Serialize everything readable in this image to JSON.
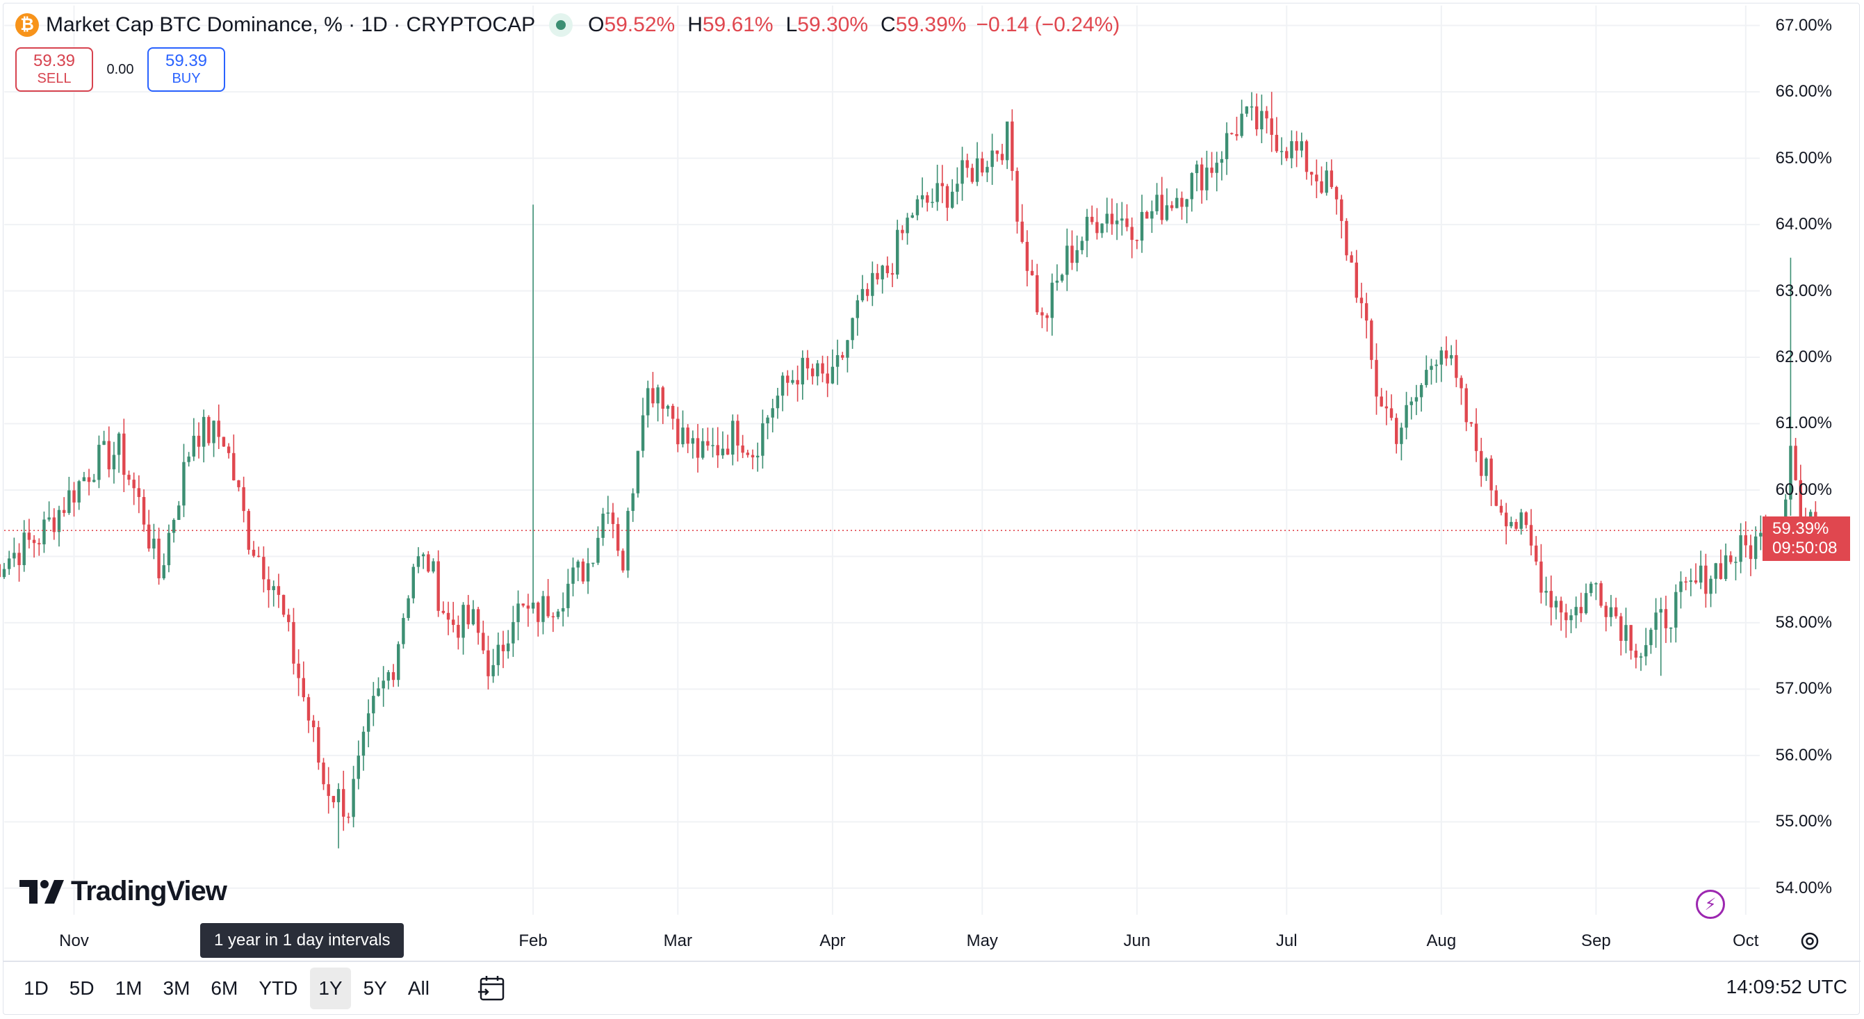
{
  "header": {
    "coin_symbol": "₿",
    "title": "Market Cap BTC Dominance, % · 1D · CRYPTOCAP",
    "ohlc": [
      {
        "k": "O",
        "v": "59.52%"
      },
      {
        "k": "H",
        "v": "59.61%"
      },
      {
        "k": "L",
        "v": "59.30%"
      },
      {
        "k": "C",
        "v": "59.39%"
      }
    ],
    "change": "−0.14 (−0.24%)"
  },
  "trade": {
    "sell_price": "59.39",
    "sell_label": "SELL",
    "spread": "0.00",
    "buy_price": "59.39",
    "buy_label": "BUY"
  },
  "price_tag": {
    "price": "59.39%",
    "countdown": "09:50:08"
  },
  "brand": "TradingView",
  "tooltip": "1 year in 1 day intervals",
  "periods": [
    "1D",
    "5D",
    "1M",
    "3M",
    "6M",
    "YTD",
    "1Y",
    "5Y",
    "All"
  ],
  "active_period": "1Y",
  "clock": "14:09:52 UTC",
  "colors": {
    "up": "#3c8f73",
    "down": "#e0474f",
    "grid": "#f0f2f5",
    "price_line": "#e0474f"
  },
  "chart_data": {
    "type": "candlestick",
    "title": "Market Cap BTC Dominance, % · 1D · CRYPTOCAP",
    "xlabel": "",
    "ylabel": "",
    "ylim": [
      53.6,
      67.3
    ],
    "y_ticks": [
      "54.00%",
      "55.00%",
      "56.00%",
      "57.00%",
      "58.00%",
      "59.00%",
      "60.00%",
      "61.00%",
      "62.00%",
      "63.00%",
      "64.00%",
      "65.00%",
      "66.00%",
      "67.00%"
    ],
    "x_ticks": [
      "Nov",
      "Feb",
      "Mar",
      "Apr",
      "May",
      "Jun",
      "Jul",
      "Aug",
      "Sep",
      "Oct"
    ],
    "x_tick_dates": [
      "2023-11-01",
      "2024-02-01",
      "2024-03-01",
      "2024-04-01",
      "2024-05-01",
      "2024-06-01",
      "2024-07-01",
      "2024-08-01",
      "2024-09-01",
      "2024-10-01"
    ],
    "grid": true,
    "last_price": 59.39,
    "close_series": {
      "start_date": "2023-10-15",
      "end_date": "2024-10-15",
      "interval": "1D",
      "anchors": [
        {
          "date": "2023-10-15",
          "close": 58.8
        },
        {
          "date": "2023-10-25",
          "close": 59.3
        },
        {
          "date": "2023-11-05",
          "close": 60.4
        },
        {
          "date": "2023-11-10",
          "close": 60.6
        },
        {
          "date": "2023-11-15",
          "close": 59.6
        },
        {
          "date": "2023-11-18",
          "close": 58.7
        },
        {
          "date": "2023-11-25",
          "close": 60.9
        },
        {
          "date": "2023-12-01",
          "close": 60.8
        },
        {
          "date": "2023-12-06",
          "close": 59.3
        },
        {
          "date": "2023-12-11",
          "close": 58.6
        },
        {
          "date": "2023-12-16",
          "close": 57.2
        },
        {
          "date": "2023-12-21",
          "close": 55.6
        },
        {
          "date": "2023-12-26",
          "close": 55.2
        },
        {
          "date": "2023-12-31",
          "close": 56.7
        },
        {
          "date": "2024-01-04",
          "close": 57.4
        },
        {
          "date": "2024-01-08",
          "close": 58.9
        },
        {
          "date": "2024-01-11",
          "close": 58.9
        },
        {
          "date": "2024-01-15",
          "close": 58.0
        },
        {
          "date": "2024-01-20",
          "close": 58.0
        },
        {
          "date": "2024-01-24",
          "close": 57.2
        },
        {
          "date": "2024-01-28",
          "close": 58.2
        },
        {
          "date": "2024-02-01",
          "close": 58.1
        },
        {
          "date": "2024-02-06",
          "close": 58.4
        },
        {
          "date": "2024-02-12",
          "close": 58.9
        },
        {
          "date": "2024-02-16",
          "close": 59.9
        },
        {
          "date": "2024-02-19",
          "close": 58.9
        },
        {
          "date": "2024-02-23",
          "close": 61.4
        },
        {
          "date": "2024-02-26",
          "close": 61.6
        },
        {
          "date": "2024-03-02",
          "close": 60.8
        },
        {
          "date": "2024-03-06",
          "close": 60.5
        },
        {
          "date": "2024-03-10",
          "close": 60.7
        },
        {
          "date": "2024-03-13",
          "close": 60.9
        },
        {
          "date": "2024-03-16",
          "close": 60.6
        },
        {
          "date": "2024-03-20",
          "close": 61.3
        },
        {
          "date": "2024-03-25",
          "close": 61.8
        },
        {
          "date": "2024-04-01",
          "close": 61.6
        },
        {
          "date": "2024-04-06",
          "close": 62.7
        },
        {
          "date": "2024-04-12",
          "close": 63.3
        },
        {
          "date": "2024-04-17",
          "close": 64.2
        },
        {
          "date": "2024-04-24",
          "close": 64.5
        },
        {
          "date": "2024-04-30",
          "close": 64.9
        },
        {
          "date": "2024-05-06",
          "close": 65.3
        },
        {
          "date": "2024-05-09",
          "close": 63.8
        },
        {
          "date": "2024-05-13",
          "close": 62.5
        },
        {
          "date": "2024-05-18",
          "close": 63.5
        },
        {
          "date": "2024-05-25",
          "close": 64.2
        },
        {
          "date": "2024-06-01",
          "close": 64.0
        },
        {
          "date": "2024-06-08",
          "close": 64.4
        },
        {
          "date": "2024-06-16",
          "close": 64.9
        },
        {
          "date": "2024-06-22",
          "close": 65.6
        },
        {
          "date": "2024-06-28",
          "close": 65.4
        },
        {
          "date": "2024-07-04",
          "close": 65.0
        },
        {
          "date": "2024-07-10",
          "close": 64.5
        },
        {
          "date": "2024-07-15",
          "close": 63.1
        },
        {
          "date": "2024-07-19",
          "close": 61.5
        },
        {
          "date": "2024-07-23",
          "close": 60.9
        },
        {
          "date": "2024-07-26",
          "close": 61.2
        },
        {
          "date": "2024-08-01",
          "close": 62.3
        },
        {
          "date": "2024-08-07",
          "close": 60.8
        },
        {
          "date": "2024-08-12",
          "close": 59.9
        },
        {
          "date": "2024-08-18",
          "close": 59.3
        },
        {
          "date": "2024-08-22",
          "close": 58.5
        },
        {
          "date": "2024-08-27",
          "close": 58.1
        },
        {
          "date": "2024-09-01",
          "close": 58.6
        },
        {
          "date": "2024-09-06",
          "close": 58.0
        },
        {
          "date": "2024-09-10",
          "close": 57.6
        },
        {
          "date": "2024-09-16",
          "close": 58.2
        },
        {
          "date": "2024-09-20",
          "close": 58.5
        },
        {
          "date": "2024-09-26",
          "close": 58.9
        },
        {
          "date": "2024-10-03",
          "close": 59.2
        },
        {
          "date": "2024-10-08",
          "close": 59.4
        },
        {
          "date": "2024-10-10",
          "close": 60.8
        },
        {
          "date": "2024-10-12",
          "close": 59.5
        },
        {
          "date": "2024-10-15",
          "close": 59.39
        }
      ]
    },
    "notable_wicks": [
      {
        "date": "2024-02-01",
        "high": 64.3
      },
      {
        "date": "2024-10-10",
        "high": 63.5
      },
      {
        "date": "2023-12-24",
        "low": 54.6
      },
      {
        "date": "2024-06-28",
        "high": 66.0
      },
      {
        "date": "2024-05-06",
        "high": 65.4
      },
      {
        "date": "2024-09-14",
        "low": 57.2
      }
    ]
  }
}
